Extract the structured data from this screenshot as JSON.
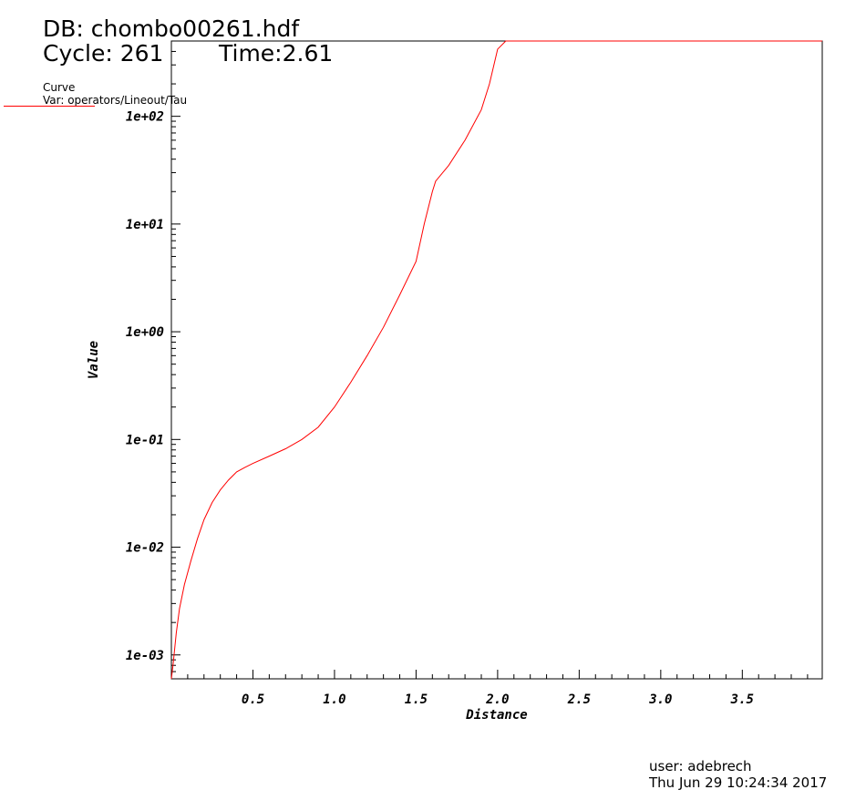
{
  "header": {
    "db_title": "DB: chombo00261.hdf",
    "cycle": "Cycle: 261",
    "time": "Time:2.61"
  },
  "legend": {
    "title": "Curve",
    "var": "Var: operators/Lineout/Tau",
    "color": "#ff0000"
  },
  "footer": {
    "user": "user: adebrech",
    "date": "Thu Jun 29 10:24:34 2017"
  },
  "chart_data": {
    "type": "line",
    "xlabel": "Distance",
    "ylabel": "Value",
    "xlim": [
      0,
      3.99
    ],
    "ylim": [
      0.0006,
      500
    ],
    "yscale": "log",
    "grid": false,
    "legend_position": "top-left",
    "x_ticks": [
      0.5,
      1.0,
      1.5,
      2.0,
      2.5,
      3.0,
      3.5
    ],
    "x_tick_labels": [
      "0.5",
      "1.0",
      "1.5",
      "2.0",
      "2.5",
      "3.0",
      "3.5"
    ],
    "y_ticks": [
      0.001,
      0.01,
      0.1,
      1,
      10,
      100
    ],
    "y_tick_labels": [
      "1e-03",
      "1e-02",
      "1e-01",
      "1e+00",
      "1e+01",
      "1e+02"
    ],
    "series": [
      {
        "color": "#ff0000",
        "x": [
          0.0,
          0.01,
          0.03,
          0.05,
          0.08,
          0.12,
          0.16,
          0.2,
          0.25,
          0.3,
          0.35,
          0.4,
          0.45,
          0.5,
          0.6,
          0.7,
          0.8,
          0.9,
          1.0,
          1.1,
          1.2,
          1.3,
          1.4,
          1.5,
          1.55,
          1.6,
          1.62,
          1.7,
          1.8,
          1.9,
          1.95,
          2.0,
          2.05,
          2.1,
          2.2,
          2.3,
          2.4,
          2.5,
          3.0,
          3.5,
          3.99
        ],
        "y": [
          0.0006,
          0.0008,
          0.0016,
          0.0027,
          0.0045,
          0.0075,
          0.012,
          0.018,
          0.026,
          0.034,
          0.042,
          0.05,
          0.055,
          0.06,
          0.07,
          0.082,
          0.1,
          0.13,
          0.2,
          0.34,
          0.6,
          1.1,
          2.2,
          4.5,
          10,
          20,
          25,
          35,
          60,
          115,
          200,
          420,
          600,
          660,
          700,
          720,
          725,
          725,
          725,
          725,
          725
        ]
      }
    ]
  }
}
